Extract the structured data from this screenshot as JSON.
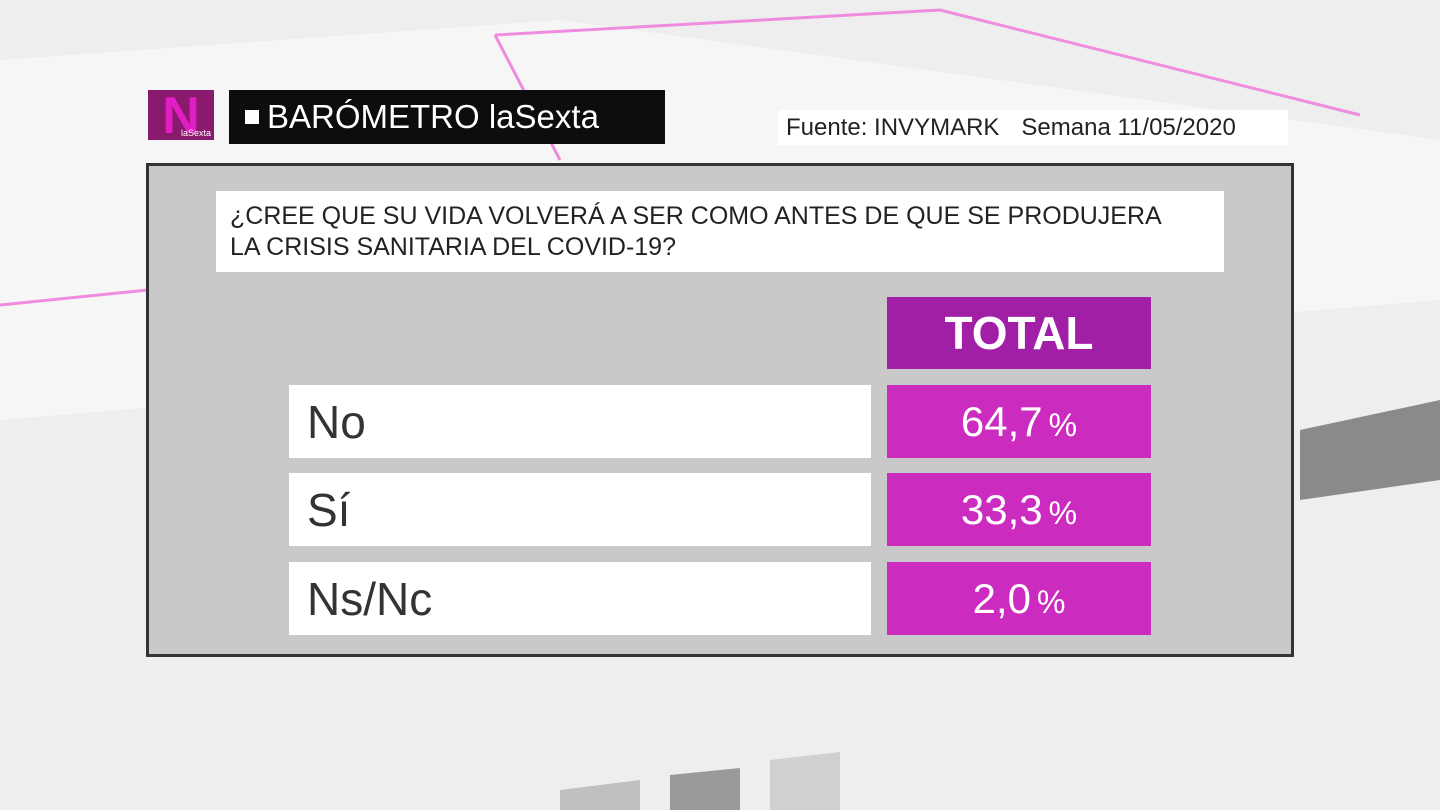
{
  "header": {
    "logo_letter": "N",
    "logo_text": "laSexta",
    "title": "BARÓMETRO laSexta"
  },
  "source": {
    "label": "Fuente: INVYMARK",
    "date": "Semana 11/05/2020"
  },
  "question": {
    "line1": "¿CREE QUE SU VIDA VOLVERÁ A SER COMO ANTES DE QUE SE PRODUJERA",
    "line2": "LA CRISIS SANITARIA DEL COVID-19?"
  },
  "table": {
    "column": "TOTAL",
    "rows": [
      {
        "label": "No",
        "value": "64,7",
        "unit": "%"
      },
      {
        "label": "Sí",
        "value": "33,3",
        "unit": "%"
      },
      {
        "label": "Ns/Nc",
        "value": "2,0",
        "unit": "%"
      }
    ]
  }
}
